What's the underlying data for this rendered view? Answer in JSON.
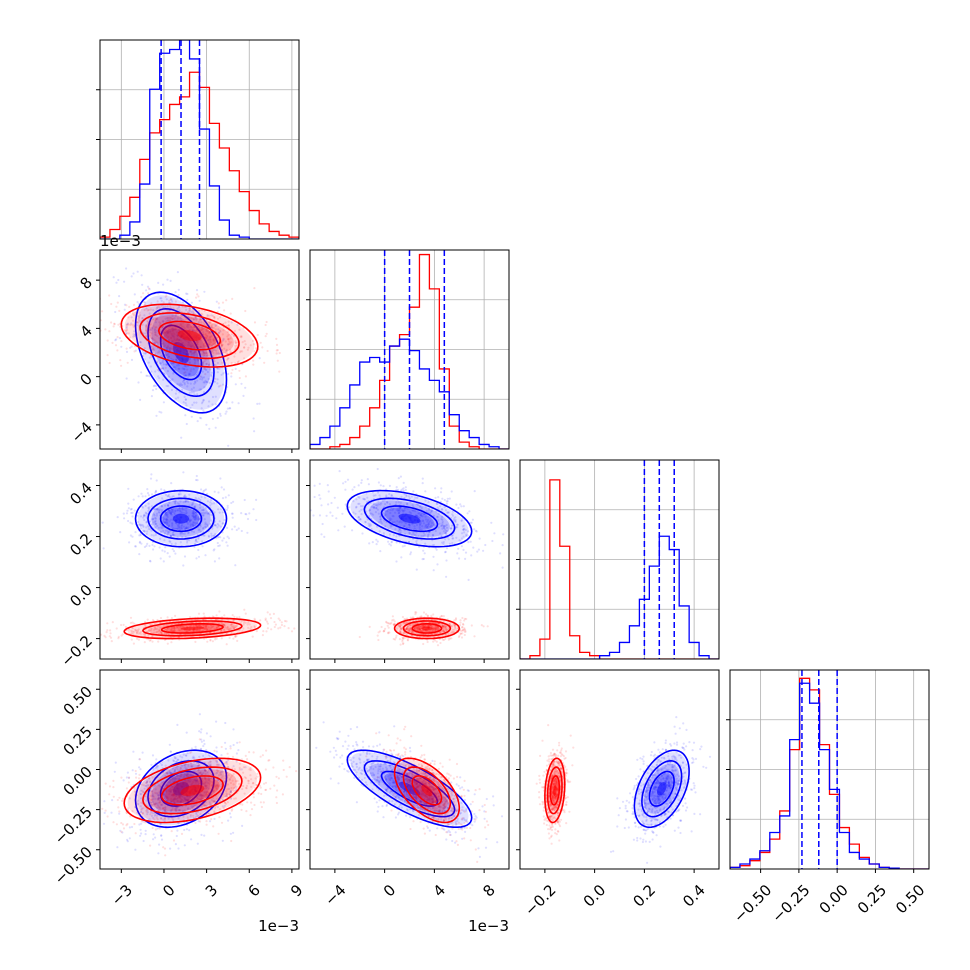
{
  "chart_data": {
    "type": "corner",
    "grid": true,
    "colors": {
      "blue": "#0000ff",
      "red": "#ff0000",
      "grid": "#b0b0b0"
    },
    "series": [
      {
        "color": "blue",
        "quantiles_shown_for": true,
        "x1_mean": 0.0012,
        "x2_mean": 0.002,
        "x3_mean": 0.27,
        "x4_mean": -0.13,
        "x1_quantiles": [
          -0.0002,
          0.0012,
          0.0025
        ],
        "x2_quantiles": [
          0.0,
          0.002,
          0.0048
        ],
        "x3_quantiles": [
          0.2,
          0.26,
          0.32
        ],
        "x4_quantiles": [
          -0.23,
          -0.12,
          0.0
        ]
      },
      {
        "color": "red",
        "x1_mean": 0.0018,
        "x2_mean": 0.0034,
        "x3_mean": -0.16,
        "x4_mean": -0.13
      }
    ],
    "panels_1d": [
      {
        "param": "x1",
        "xlim": [
          -0.0045,
          0.0095
        ],
        "bins": [
          -0.0045,
          -0.0038,
          -0.0031,
          -0.0024,
          -0.0017,
          -0.001,
          -0.0003,
          0.0004,
          0.0011,
          0.0018,
          0.0025,
          0.0032,
          0.0039,
          0.0046,
          0.0053,
          0.006,
          0.0067,
          0.0074,
          0.0081,
          0.0088,
          0.0095
        ],
        "blue": [
          0,
          0,
          0.02,
          0.09,
          0.29,
          0.79,
          0.98,
          1.0,
          1.05,
          0.95,
          0.58,
          0.28,
          0.1,
          0.02,
          0.01,
          0,
          0,
          0,
          0,
          0
        ],
        "red": [
          0.01,
          0.05,
          0.12,
          0.22,
          0.42,
          0.56,
          0.63,
          0.71,
          0.75,
          0.88,
          0.8,
          0.61,
          0.48,
          0.36,
          0.25,
          0.15,
          0.08,
          0.04,
          0.02,
          0.01
        ],
        "ymax": 1.05
      },
      {
        "param": "x2",
        "xlim": [
          -0.006,
          0.01
        ],
        "bins": [
          -0.006,
          -0.0052,
          -0.0044,
          -0.0036,
          -0.0028,
          -0.002,
          -0.0012,
          -0.0004,
          0.0004,
          0.0012,
          0.002,
          0.0028,
          0.0036,
          0.0044,
          0.0052,
          0.006,
          0.0068,
          0.0076,
          0.0084,
          0.0092,
          0.01
        ],
        "blue": [
          0.02,
          0.05,
          0.1,
          0.18,
          0.28,
          0.38,
          0.4,
          0.38,
          0.45,
          0.48,
          0.43,
          0.35,
          0.3,
          0.25,
          0.15,
          0.08,
          0.05,
          0.02,
          0.01,
          0
        ],
        "red": [
          0,
          0,
          0.01,
          0.02,
          0.05,
          0.1,
          0.18,
          0.3,
          0.45,
          0.5,
          0.62,
          0.85,
          0.7,
          0.35,
          0.1,
          0.03,
          0.01,
          0,
          0,
          0
        ],
        "ymax": 0.87
      },
      {
        "param": "x3",
        "xlim": [
          -0.3,
          0.5
        ],
        "bins": [
          -0.3,
          -0.26,
          -0.22,
          -0.18,
          -0.14,
          -0.1,
          -0.06,
          -0.02,
          0.02,
          0.06,
          0.1,
          0.14,
          0.18,
          0.22,
          0.26,
          0.3,
          0.34,
          0.38,
          0.42,
          0.46,
          0.5
        ],
        "blue": [
          0,
          0,
          0,
          0,
          0,
          0,
          0,
          0,
          0.01,
          0.02,
          0.05,
          0.1,
          0.18,
          0.28,
          0.37,
          0.33,
          0.16,
          0.05,
          0.01,
          0
        ],
        "red": [
          0,
          0.01,
          0.06,
          0.54,
          0.34,
          0.07,
          0.02,
          0.01,
          0,
          0,
          0,
          0,
          0,
          0,
          0,
          0,
          0,
          0,
          0,
          0
        ],
        "ymax": 0.6
      },
      {
        "param": "x4",
        "xlim": [
          -0.7,
          0.6
        ],
        "bins": [
          -0.7,
          -0.635,
          -0.57,
          -0.505,
          -0.44,
          -0.375,
          -0.31,
          -0.245,
          -0.18,
          -0.115,
          -0.05,
          0.015,
          0.08,
          0.145,
          0.21,
          0.275,
          0.34,
          0.405,
          0.47,
          0.535,
          0.6
        ],
        "blue": [
          0.01,
          0.03,
          0.06,
          0.11,
          0.22,
          0.32,
          0.78,
          1.12,
          1.0,
          0.72,
          0.48,
          0.22,
          0.1,
          0.06,
          0.03,
          0.01,
          0.005,
          0,
          0,
          0
        ],
        "red": [
          0.01,
          0.02,
          0.05,
          0.1,
          0.18,
          0.35,
          0.72,
          1.15,
          1.08,
          0.75,
          0.45,
          0.25,
          0.15,
          0.07,
          0.03,
          0.01,
          0,
          0,
          0,
          0
        ],
        "ymax": 1.2
      }
    ],
    "axes": {
      "x1": {
        "lim": [
          -0.0045,
          0.0095
        ],
        "ticks": [
          -0.003,
          0,
          0.003,
          0.006,
          0.009
        ],
        "tick_labels": [
          "−3",
          "0",
          "3",
          "6",
          "9"
        ],
        "offset_label": "1e−3"
      },
      "x2": {
        "lim": [
          -0.006,
          0.01
        ],
        "ticks": [
          -0.004,
          0,
          0.004,
          0.008
        ],
        "tick_labels": [
          "−4",
          "0",
          "4",
          "8"
        ],
        "offset_label": "1e−3"
      },
      "x3": {
        "lim": [
          -0.3,
          0.5
        ],
        "ticks": [
          -0.2,
          0.0,
          0.2,
          0.4
        ],
        "tick_labels": [
          "−0.2",
          "0.0",
          "0.2",
          "0.4"
        ]
      },
      "x4": {
        "lim": [
          -0.7,
          0.6
        ],
        "ticks": [
          -0.5,
          -0.25,
          0,
          0.25,
          0.5
        ],
        "tick_labels": [
          "−0.50",
          "−0.25",
          "0.00",
          "0.25",
          "0.50"
        ]
      }
    },
    "y_axes": {
      "x2": {
        "lim": [
          -0.006,
          0.0105
        ],
        "ticks": [
          -0.004,
          0,
          0.004,
          0.008
        ],
        "tick_labels": [
          "−4",
          "0",
          "4",
          "8"
        ],
        "offset_label": "1e−3"
      },
      "x3": {
        "lim": [
          -0.28,
          0.5
        ],
        "ticks": [
          -0.2,
          0.0,
          0.2,
          0.4
        ],
        "tick_labels": [
          "−0.2",
          "0.0",
          "0.2",
          "0.4"
        ]
      },
      "x4": {
        "lim": [
          -0.62,
          0.62
        ],
        "ticks": [
          -0.5,
          -0.25,
          0,
          0.25,
          0.5
        ],
        "tick_labels": [
          "−0.50",
          "−0.25",
          "0.00",
          "0.25",
          "0.50"
        ]
      }
    },
    "clouds_2d": {
      "x1-x2": {
        "blue": {
          "c": [
            0.0012,
            0.002
          ],
          "s": [
            0.0016,
            0.0025
          ],
          "rho": -0.45
        },
        "red": {
          "c": [
            0.0018,
            0.0034
          ],
          "s": [
            0.0024,
            0.0013
          ],
          "rho": -0.35
        }
      },
      "x1-x3": {
        "blue": {
          "c": [
            0.0012,
            0.27
          ],
          "s": [
            0.0016,
            0.055
          ],
          "rho": 0.0
        },
        "red": {
          "c": [
            0.002,
            -0.16
          ],
          "s": [
            0.0024,
            0.02
          ],
          "rho": 0.3
        }
      },
      "x2-x3": {
        "blue": {
          "c": [
            0.002,
            0.27
          ],
          "s": [
            0.0025,
            0.055
          ],
          "rho": -0.45
        },
        "red": {
          "c": [
            0.0034,
            -0.16
          ],
          "s": [
            0.0013,
            0.02
          ],
          "rho": 0.0
        }
      },
      "x1-x4": {
        "blue": {
          "c": [
            0.0012,
            -0.12
          ],
          "s": [
            0.0016,
            0.12
          ],
          "rho": 0.3
        },
        "red": {
          "c": [
            0.002,
            -0.13
          ],
          "s": [
            0.0024,
            0.1
          ],
          "rho": 0.4
        }
      },
      "x2-x4": {
        "blue": {
          "c": [
            0.002,
            -0.12
          ],
          "s": [
            0.0025,
            0.12
          ],
          "rho": -0.75
        },
        "red": {
          "c": [
            0.0034,
            -0.13
          ],
          "s": [
            0.0013,
            0.1
          ],
          "rho": -0.55
        }
      },
      "x3-x4": {
        "blue": {
          "c": [
            0.27,
            -0.12
          ],
          "s": [
            0.055,
            0.12
          ],
          "rho": 0.45
        },
        "red": {
          "c": [
            -0.16,
            -0.13
          ],
          "s": [
            0.02,
            0.1
          ],
          "rho": 0.2
        }
      }
    }
  }
}
